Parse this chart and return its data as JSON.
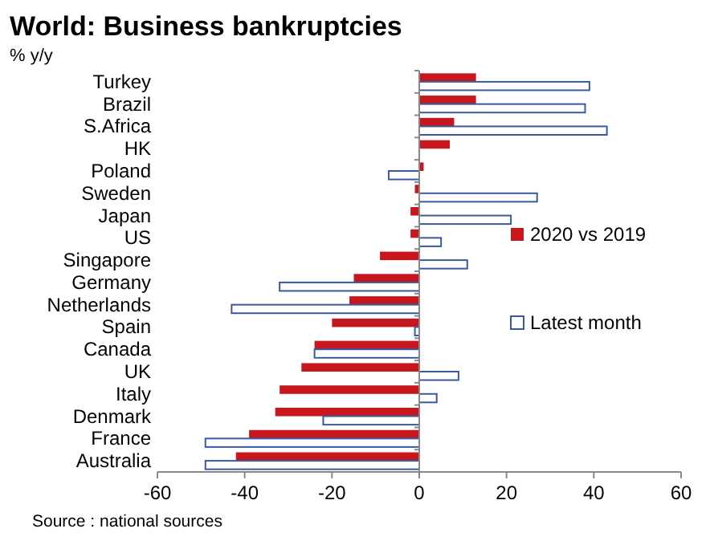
{
  "chart_data": {
    "type": "bar",
    "orientation": "horizontal",
    "title": "World: Business bankruptcies",
    "ylabel": "% y/y",
    "annotations": [
      "Source : national sources"
    ],
    "categories": [
      "Turkey",
      "Brazil",
      "S.Africa",
      "HK",
      "Poland",
      "Sweden",
      "Japan",
      "US",
      "Singapore",
      "Germany",
      "Netherlands",
      "Spain",
      "Canada",
      "UK",
      "Italy",
      "Denmark",
      "France",
      "Australia"
    ],
    "series": [
      {
        "name": "2020 vs 2019",
        "color": "#c8161e",
        "values": [
          13,
          13,
          8,
          7,
          1,
          -1,
          -2,
          -2,
          -9,
          -15,
          -16,
          -20,
          -24,
          -27,
          -32,
          -33,
          -39,
          -42
        ]
      },
      {
        "name": "Latest month",
        "color": "#3a5aa0",
        "values": [
          39,
          38,
          43,
          null,
          -7,
          27,
          21,
          5,
          11,
          -32,
          -43,
          -1,
          -24,
          9,
          4,
          -22,
          -49,
          -49
        ]
      }
    ],
    "xlim": [
      -60,
      60
    ],
    "xticks": [
      -60,
      -40,
      -20,
      0,
      20,
      40,
      60
    ],
    "legend": "right"
  }
}
